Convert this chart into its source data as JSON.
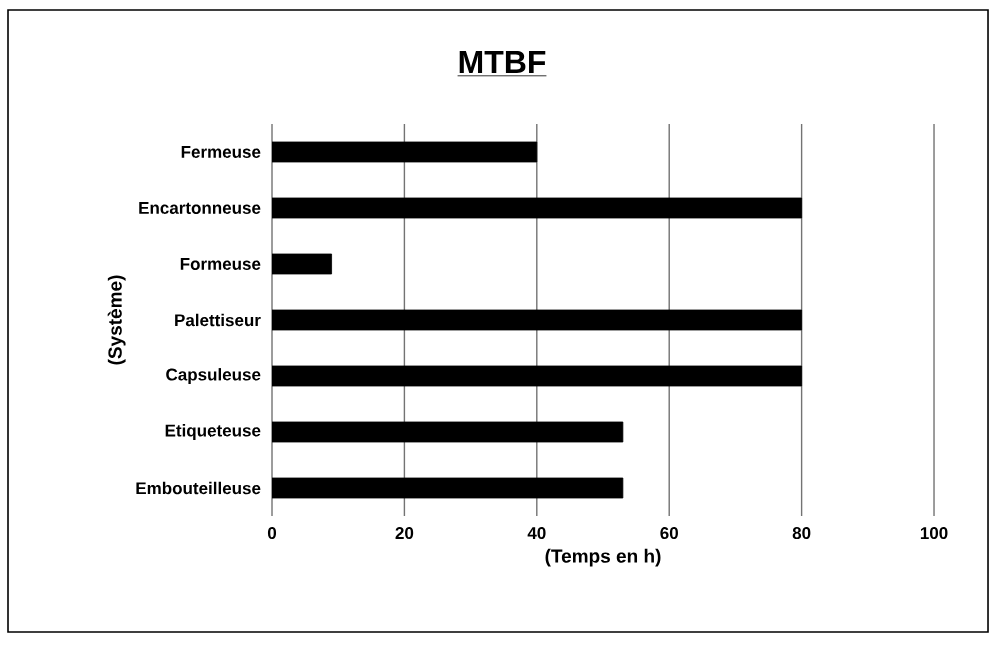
{
  "chart_data": {
    "type": "bar",
    "orientation": "horizontal",
    "title": "MTBF",
    "xlabel": "(Temps en h)",
    "ylabel": "(Système)",
    "categories": [
      "Fermeuse",
      "Encartonneuse",
      "Formeuse",
      "Palettiseur",
      "Capsuleuse",
      "Etiqueteuse",
      "Embouteilleuse"
    ],
    "values": [
      40,
      80,
      9,
      80,
      80,
      53,
      53
    ],
    "color": "#000000",
    "xlim": [
      0,
      100
    ],
    "xticks": [
      0,
      20,
      40,
      60,
      80,
      100
    ],
    "grid": "x"
  }
}
